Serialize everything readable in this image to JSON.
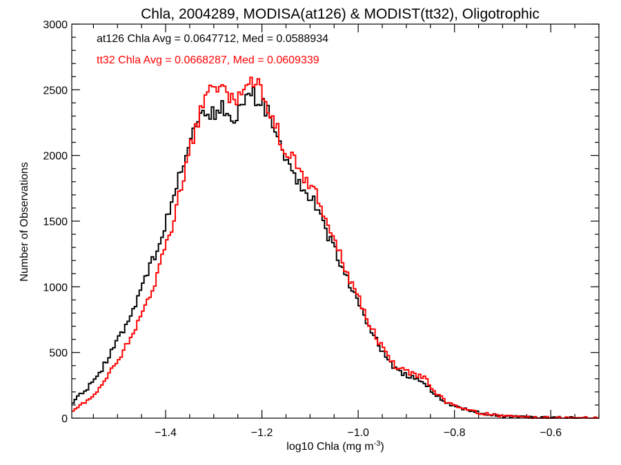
{
  "chart_data": {
    "type": "line",
    "title": "Chla, 2004289, MODISA(at126) & MODIST(tt32), Oligotrophic",
    "xlabel": "log10 Chla (mg m",
    "xlabel_sup": "-3",
    "xlabel_end": ")",
    "ylabel": "Number of Observations",
    "xlim": [
      -1.595,
      -0.5
    ],
    "ylim": [
      0,
      3000
    ],
    "x_ticks": [
      -1.4,
      -1.2,
      -1.0,
      -0.8,
      -0.6
    ],
    "x_tick_labels": [
      "−1.4",
      "−1.2",
      "−1.0",
      "−0.8",
      "−0.6"
    ],
    "y_ticks": [
      0,
      500,
      1000,
      1500,
      2000,
      2500,
      3000
    ],
    "y_tick_labels": [
      "0",
      "500",
      "1000",
      "1500",
      "2000",
      "2500",
      "3000"
    ],
    "annotations": [
      {
        "text": "at126 Chla Avg = 0.0647712, Med = 0.0588934",
        "color": "#000000"
      },
      {
        "text": "tt32 Chla Avg = 0.0668287, Med = 0.0609339",
        "color": "#ff0000"
      }
    ],
    "series": [
      {
        "color": "#000000",
        "x": [
          -1.595,
          -1.58,
          -1.56,
          -1.54,
          -1.52,
          -1.5,
          -1.48,
          -1.46,
          -1.44,
          -1.42,
          -1.4,
          -1.38,
          -1.36,
          -1.34,
          -1.32,
          -1.3,
          -1.28,
          -1.26,
          -1.24,
          -1.22,
          -1.2,
          -1.18,
          -1.16,
          -1.14,
          -1.12,
          -1.1,
          -1.08,
          -1.06,
          -1.04,
          -1.02,
          -1.0,
          -0.98,
          -0.96,
          -0.94,
          -0.92,
          -0.9,
          -0.88,
          -0.86,
          -0.84,
          -0.82,
          -0.8,
          -0.78,
          -0.76,
          -0.74,
          -0.72,
          -0.7,
          -0.68,
          -0.66,
          -0.64,
          -0.62,
          -0.6,
          -0.58,
          -0.56,
          -0.54,
          -0.52,
          -0.5
        ],
        "y": [
          120,
          170,
          240,
          330,
          450,
          580,
          740,
          900,
          1080,
          1270,
          1480,
          1720,
          1980,
          2250,
          2340,
          2310,
          2360,
          2290,
          2390,
          2470,
          2410,
          2250,
          2020,
          1880,
          1800,
          1700,
          1560,
          1380,
          1220,
          1040,
          870,
          720,
          580,
          440,
          360,
          330,
          300,
          270,
          180,
          120,
          90,
          70,
          50,
          35,
          25,
          15,
          10,
          6,
          4,
          3,
          2,
          2,
          1,
          1,
          0,
          0
        ]
      },
      {
        "color": "#ff0000",
        "x": [
          -1.595,
          -1.58,
          -1.56,
          -1.54,
          -1.52,
          -1.5,
          -1.48,
          -1.46,
          -1.44,
          -1.42,
          -1.4,
          -1.38,
          -1.36,
          -1.34,
          -1.32,
          -1.3,
          -1.28,
          -1.26,
          -1.24,
          -1.22,
          -1.2,
          -1.18,
          -1.16,
          -1.14,
          -1.12,
          -1.1,
          -1.08,
          -1.06,
          -1.04,
          -1.02,
          -1.0,
          -0.98,
          -0.96,
          -0.94,
          -0.92,
          -0.9,
          -0.88,
          -0.86,
          -0.84,
          -0.82,
          -0.8,
          -0.78,
          -0.76,
          -0.74,
          -0.72,
          -0.7,
          -0.68,
          -0.66,
          -0.64,
          -0.62,
          -0.6,
          -0.58,
          -0.56,
          -0.54,
          -0.52,
          -0.5
        ],
        "y": [
          50,
          90,
          140,
          220,
          320,
          430,
          560,
          700,
          850,
          1040,
          1300,
          1570,
          1870,
          2160,
          2400,
          2530,
          2510,
          2430,
          2480,
          2540,
          2500,
          2320,
          2100,
          1970,
          1880,
          1790,
          1650,
          1460,
          1260,
          1080,
          920,
          740,
          600,
          470,
          380,
          360,
          330,
          300,
          200,
          130,
          90,
          70,
          50,
          35,
          25,
          15,
          10,
          6,
          4,
          3,
          2,
          2,
          1,
          1,
          0,
          0
        ]
      }
    ]
  }
}
